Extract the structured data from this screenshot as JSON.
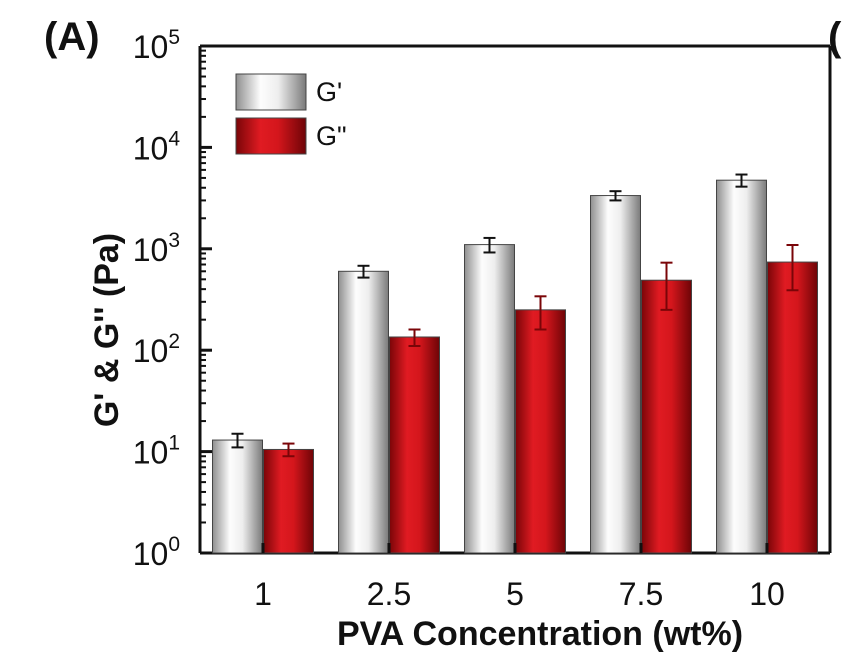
{
  "panel": {
    "label": "(A)",
    "next_panel_fragment": "("
  },
  "chart_data": {
    "type": "bar",
    "title": "",
    "xlabel": "PVA Concentration (wt%)",
    "ylabel": "G' & G'' (Pa)",
    "y_scale": "log",
    "ylim": [
      1,
      100000
    ],
    "y_ticks": [
      {
        "base": "10",
        "exp": "0"
      },
      {
        "base": "10",
        "exp": "1"
      },
      {
        "base": "10",
        "exp": "2"
      },
      {
        "base": "10",
        "exp": "3"
      },
      {
        "base": "10",
        "exp": "4"
      },
      {
        "base": "10",
        "exp": "5"
      }
    ],
    "categories": [
      "1",
      "2.5",
      "5",
      "7.5",
      "10"
    ],
    "legend_position": "top-left",
    "series": [
      {
        "name": "G'",
        "fill": "silver-gradient",
        "color": "#d9d9d9",
        "values": [
          13,
          600,
          1100,
          3350,
          4750
        ],
        "errors": [
          2,
          80,
          180,
          350,
          650
        ]
      },
      {
        "name": "G\"",
        "fill": "red-gradient",
        "color": "#c8161d",
        "values": [
          10.5,
          135,
          250,
          490,
          740
        ],
        "errors": [
          1.5,
          25,
          90,
          240,
          350
        ]
      }
    ]
  }
}
